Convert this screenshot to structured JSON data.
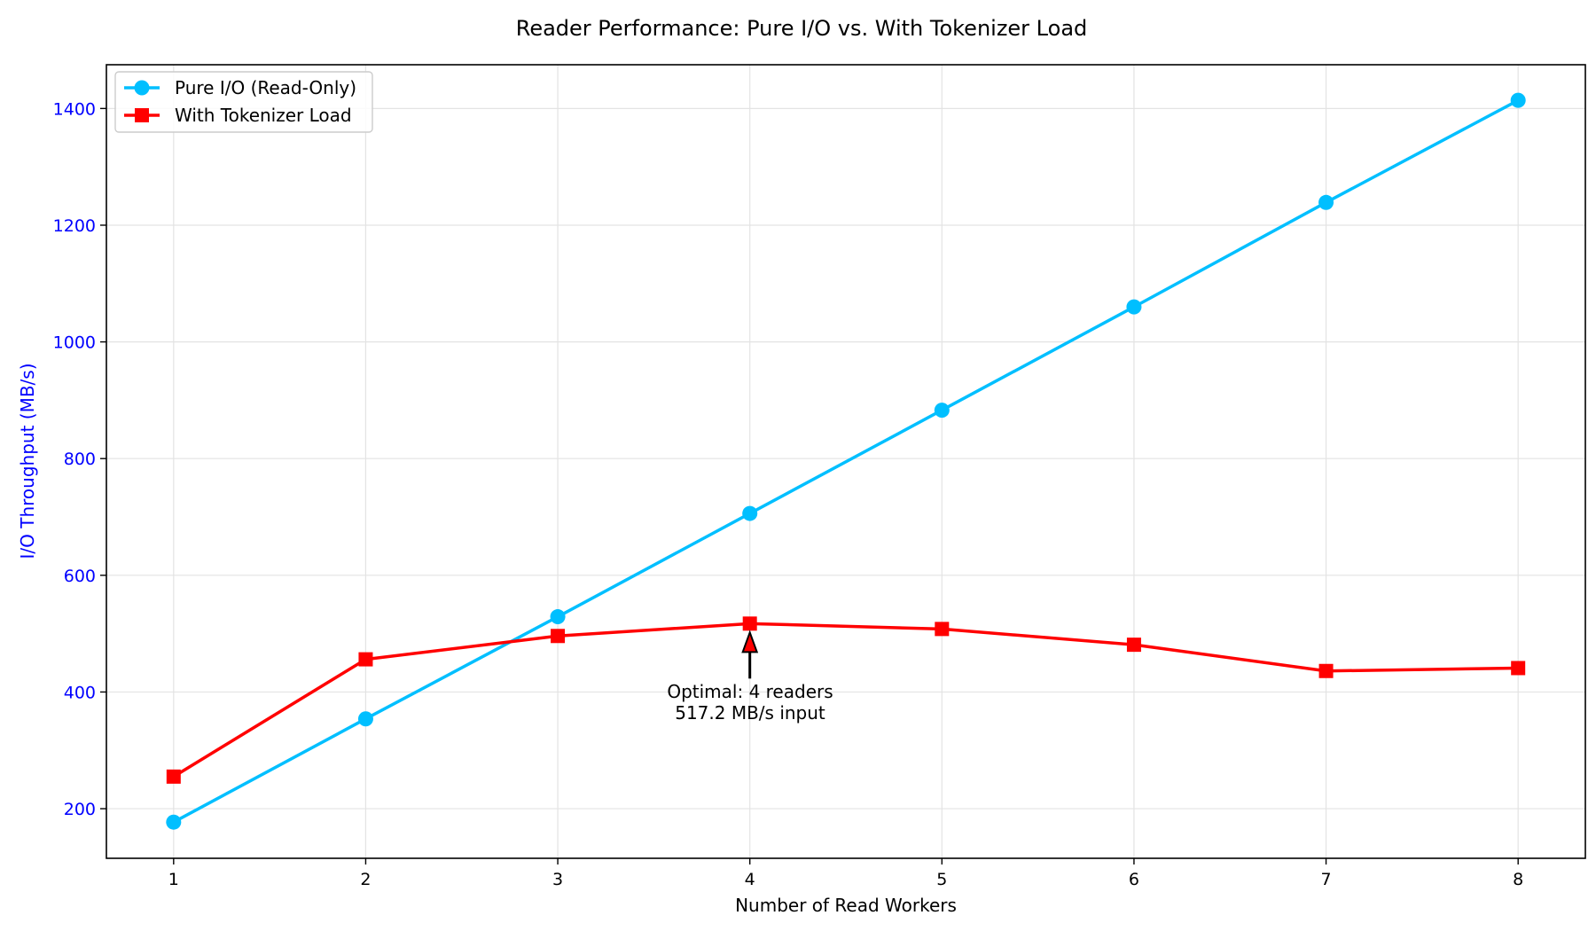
{
  "chart_data": {
    "type": "line",
    "title": "Reader Performance: Pure I/O vs. With Tokenizer Load",
    "xlabel": "Number of Read Workers",
    "ylabel": "I/O Throughput (MB/s)",
    "x": [
      1,
      2,
      3,
      4,
      5,
      6,
      7,
      8
    ],
    "xlim": [
      0.65,
      8.35
    ],
    "ylim": [
      115,
      1475
    ],
    "xticks": [
      "1",
      "2",
      "3",
      "4",
      "5",
      "6",
      "7",
      "8"
    ],
    "yticks": [
      "200",
      "400",
      "600",
      "800",
      "1000",
      "1200",
      "1400"
    ],
    "grid": true,
    "legend_position": "top-left",
    "series": [
      {
        "name": "Pure I/O (Read-Only)",
        "color": "#00bfff",
        "marker": "circle",
        "values": [
          177,
          354,
          529,
          706,
          883,
          1060,
          1239,
          1414
        ]
      },
      {
        "name": "With Tokenizer Load",
        "color": "#ff0000",
        "marker": "square",
        "values": [
          255,
          456,
          496,
          517.2,
          508,
          481,
          436,
          441
        ]
      }
    ],
    "annotation": {
      "line1": "Optimal: 4 readers",
      "line2": "517.2 MB/s input",
      "x": 4,
      "y": 517.2
    },
    "ylabel_color": "#0000ff",
    "ytick_color": "#0000ff"
  }
}
